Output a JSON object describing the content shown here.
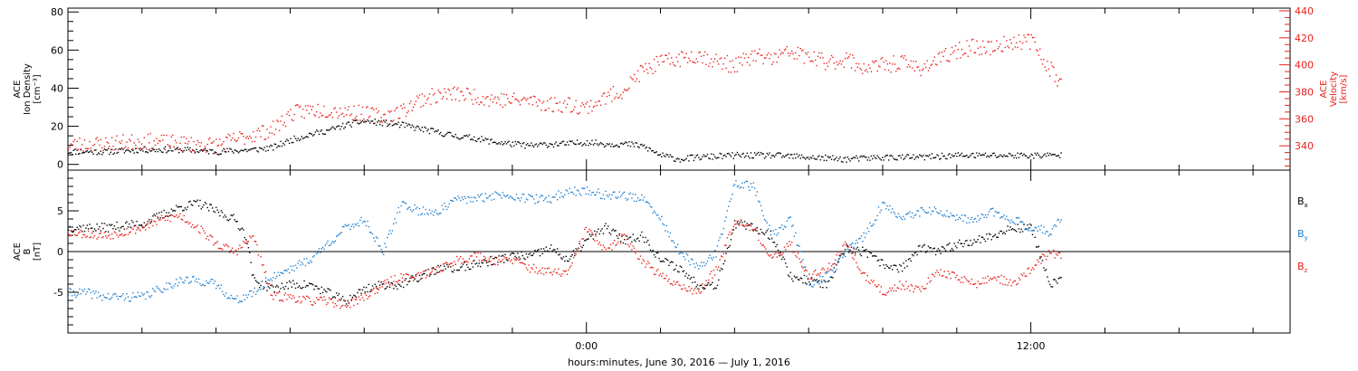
{
  "chart_data": {
    "type": "scatter",
    "xlabel": "hours:minutes, June 30, 2016 — July  1, 2016",
    "colors": {
      "black": "#000000",
      "red": "#e8211c",
      "blue": "#1f7fd0"
    },
    "time_axis": {
      "xlim": [
        -14,
        19
      ],
      "ticks": [
        {
          "value": 0,
          "label": "0:00"
        },
        {
          "value": 12,
          "label": "12:00"
        }
      ],
      "minor_step": 2
    },
    "panels": [
      {
        "left_axis": {
          "title_lines": [
            "ACE",
            "Ion Density",
            "[cm⁻³]"
          ],
          "ylim": [
            -3,
            82
          ],
          "ticks": [
            0,
            20,
            40,
            60,
            80
          ],
          "minor_step": 5
        },
        "right_axis": {
          "title_lines": [
            "ACE",
            "Velocity",
            "[km/s]"
          ],
          "ylim": [
            322,
            442
          ],
          "ticks": [
            340,
            360,
            380,
            400,
            420,
            440
          ],
          "minor_step": 5
        },
        "series": [
          {
            "color": "black",
            "axis": "left",
            "x": [
              -14,
              -13,
              -12,
              -11,
              -10,
              -9,
              -8.5,
              -8,
              -7.5,
              -7,
              -6.5,
              -6,
              -5.5,
              -5,
              -4.5,
              -4,
              -3.5,
              -3,
              -2.5,
              -2,
              -1.5,
              -1,
              -0.5,
              0,
              0.5,
              1,
              1.5,
              2,
              2.5,
              3,
              4,
              5,
              6,
              7,
              8,
              9,
              10,
              11,
              12,
              12.8
            ],
            "y": [
              7,
              7,
              8,
              8,
              7,
              8,
              9,
              13,
              16,
              18,
              21,
              23,
              22,
              21,
              19,
              17,
              15,
              14,
              12,
              11,
              10,
              11,
              11,
              12,
              11,
              11,
              10,
              5,
              3,
              4,
              5,
              5,
              4,
              3,
              4,
              4,
              5,
              5,
              5,
              5
            ]
          },
          {
            "color": "red",
            "axis": "right",
            "x": [
              -14,
              -13,
              -12,
              -11,
              -10,
              -9,
              -8.5,
              -8,
              -7.5,
              -7,
              -6.5,
              -6,
              -5.5,
              -5,
              -4.5,
              -4,
              -3.5,
              -3,
              -2.5,
              -2,
              -1.5,
              -1,
              -0.5,
              0,
              0.5,
              1,
              1.5,
              2,
              2.5,
              3,
              3.5,
              4,
              4.5,
              5,
              5.5,
              6,
              6.5,
              7,
              7.5,
              8,
              8.5,
              9,
              9.5,
              10,
              10.5,
              11,
              11.5,
              12,
              12.5,
              12.8
            ],
            "y": [
              341,
              342,
              344,
              342,
              341,
              349,
              352,
              364,
              367,
              367,
              366,
              364,
              362,
              366,
              375,
              378,
              379,
              377,
              375,
              374,
              374,
              371,
              371,
              369,
              376,
              382,
              396,
              402,
              405,
              408,
              403,
              400,
              407,
              405,
              410,
              406,
              402,
              405,
              398,
              400,
              402,
              398,
              404,
              411,
              414,
              413,
              418,
              418,
              398,
              387
            ]
          }
        ]
      },
      {
        "left_axis": {
          "title_lines": [
            "ACE",
            "B",
            "[nT]"
          ],
          "ylim": [
            -10,
            10
          ],
          "ticks": [
            -5,
            0,
            5
          ],
          "minor_step": 1
        },
        "zero_line": true,
        "legend": [
          {
            "label": "B",
            "sub": "x",
            "color": "black"
          },
          {
            "label": "B",
            "sub": "y",
            "color": "blue"
          },
          {
            "label": "B",
            "sub": "z",
            "color": "red"
          }
        ],
        "series": [
          {
            "color": "black",
            "x": [
              -14,
              -13,
              -12,
              -11,
              -10.5,
              -10,
              -9.5,
              -9.2,
              -9,
              -8.5,
              -8,
              -7.5,
              -7,
              -6.5,
              -6,
              -5.5,
              -5,
              -4.5,
              -4,
              -3.5,
              -3,
              -2.5,
              -2,
              -1.5,
              -1,
              -0.5,
              0,
              0.5,
              1,
              1.5,
              2,
              2.5,
              3,
              3.5,
              4,
              4.5,
              5,
              5.5,
              6,
              6.5,
              7,
              7.5,
              8,
              8.5,
              9,
              9.5,
              10,
              10.5,
              11,
              11.5,
              12,
              12.5,
              12.8
            ],
            "y": [
              3,
              3,
              3.5,
              5.5,
              6,
              5,
              4,
              2,
              -3.5,
              -4.5,
              -4,
              -4,
              -5,
              -6,
              -4.5,
              -4,
              -4,
              -3,
              -2,
              -2,
              -1.5,
              -1,
              -0.5,
              -0.5,
              0.5,
              -1,
              1.5,
              3,
              1.5,
              2,
              -1,
              -2,
              -4,
              -4,
              3.5,
              3,
              2,
              -3,
              -3.5,
              -4,
              0.5,
              0,
              -1.5,
              -2,
              0.5,
              0,
              1,
              1.5,
              2,
              3,
              3,
              -4,
              -3.5
            ]
          },
          {
            "color": "blue",
            "x": [
              -14,
              -13.5,
              -13,
              -12.5,
              -12,
              -11.5,
              -11,
              -10.5,
              -10,
              -9.5,
              -9,
              -8.5,
              -8,
              -7.5,
              -7,
              -6.5,
              -6,
              -5.5,
              -5,
              -4.5,
              -4,
              -3.5,
              -3,
              -2.5,
              -2,
              -1.5,
              -1,
              -0.5,
              0,
              0.5,
              1,
              1.5,
              2,
              2.5,
              3,
              3.5,
              4,
              4.5,
              5,
              5.5,
              6,
              6.5,
              7,
              7.5,
              8,
              8.5,
              9,
              9.5,
              10,
              10.5,
              11,
              11.5,
              12,
              12.5,
              12.8
            ],
            "y": [
              -5,
              -5,
              -5.5,
              -5.5,
              -5.5,
              -4.5,
              -3.5,
              -3.5,
              -4,
              -6,
              -5,
              -3,
              -2,
              -1,
              1,
              3,
              4,
              0,
              6,
              5,
              5,
              6.5,
              6.5,
              7,
              7,
              6.5,
              6.5,
              7.5,
              7.5,
              7,
              7,
              6.5,
              4,
              0,
              -2,
              0,
              8.5,
              8,
              2,
              4,
              -4,
              -3,
              0,
              2,
              6,
              4,
              5,
              5,
              4,
              4,
              5,
              4,
              3,
              2.5,
              4
            ]
          },
          {
            "color": "red",
            "x": [
              -14,
              -13,
              -12,
              -11.5,
              -11,
              -10.5,
              -10,
              -9.5,
              -9,
              -8.5,
              -8,
              -7.5,
              -7,
              -6.5,
              -6,
              -5.5,
              -5,
              -4.5,
              -4,
              -3.5,
              -3,
              -2.5,
              -2,
              -1.5,
              -1,
              -0.5,
              0,
              0.5,
              1,
              1.5,
              2,
              2.5,
              3,
              3.5,
              4,
              4.5,
              5,
              5.5,
              6,
              6.5,
              7,
              7.5,
              8,
              8.5,
              9,
              9.5,
              10,
              10.5,
              11,
              11.5,
              12,
              12.5,
              12.8
            ],
            "y": [
              2.5,
              2,
              3,
              4,
              4.5,
              3,
              1,
              0,
              2,
              -5.5,
              -5.5,
              -6,
              -6,
              -6.5,
              -5.5,
              -4,
              -3,
              -3,
              -2,
              -1,
              -0.5,
              -1,
              -1,
              -2,
              -2.5,
              -2.5,
              3,
              0,
              2,
              -1,
              -3,
              -4,
              -5,
              -2,
              4,
              3,
              -1,
              1,
              -3,
              -2,
              1,
              -3,
              -5,
              -4,
              -4.5,
              -2.5,
              -3,
              -4,
              -3,
              -4,
              -2,
              0,
              -0.5
            ]
          }
        ]
      }
    ]
  }
}
